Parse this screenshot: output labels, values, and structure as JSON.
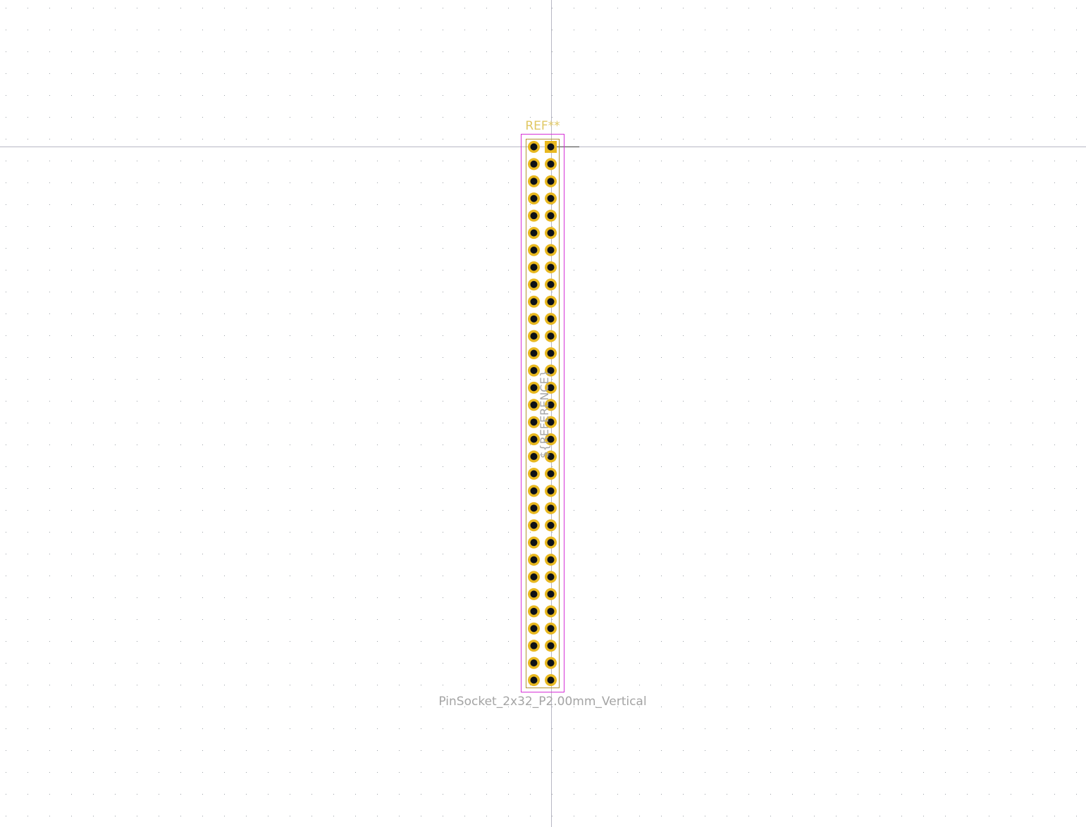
{
  "app": {
    "view": "footprint-editor-canvas",
    "background": "#ffffff",
    "grid_color": "#9aa0a6",
    "crosshair_color": "#b8b8c4"
  },
  "footprint": {
    "name": "PinSocket_2x32_P2.00mm_Vertical",
    "reference": "REF**",
    "user_text": "${REFERENCE}",
    "columns": 2,
    "rows": 32,
    "pitch_mm": 2.0,
    "orientation": "Vertical",
    "pad_color": "#e8b820",
    "hole_color": "#0d1117",
    "courtyard_color": "#d630d6",
    "fab_color": "#b49432",
    "silkscreen_color": "#e0c864",
    "value_text_color": "#a4a4a4",
    "user_text_color": "#a6a6a6",
    "pin1_pad": "square-right-column-top"
  }
}
